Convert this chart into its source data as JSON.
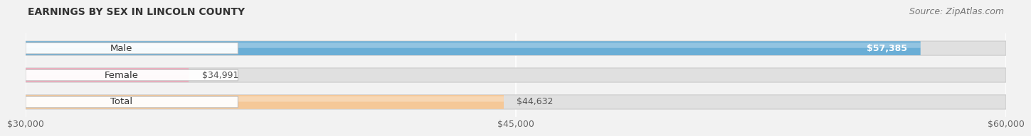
{
  "title": "EARNINGS BY SEX IN LINCOLN COUNTY",
  "source": "Source: ZipAtlas.com",
  "categories": [
    "Male",
    "Female",
    "Total"
  ],
  "values": [
    57385,
    34991,
    44632
  ],
  "x_min": 30000,
  "x_max": 60000,
  "x_ticks": [
    30000,
    45000,
    60000
  ],
  "x_tick_labels": [
    "$30,000",
    "$45,000",
    "$60,000"
  ],
  "bar_colors": [
    "#6aaed6",
    "#f4a8bc",
    "#f5c898"
  ],
  "value_labels": [
    "$57,385",
    "$34,991",
    "$44,632"
  ],
  "value_label_colors": [
    "white",
    "#555555",
    "#555555"
  ],
  "value_label_inside": [
    true,
    false,
    false
  ],
  "background_color": "#f2f2f2",
  "track_color": "#e0e0e0",
  "track_edge_color": "#cccccc",
  "title_fontsize": 10,
  "source_fontsize": 9,
  "label_fontsize": 9.5,
  "value_fontsize": 9,
  "tick_fontsize": 9,
  "bar_height": 0.52,
  "fig_width": 14.06,
  "fig_height": 1.96
}
